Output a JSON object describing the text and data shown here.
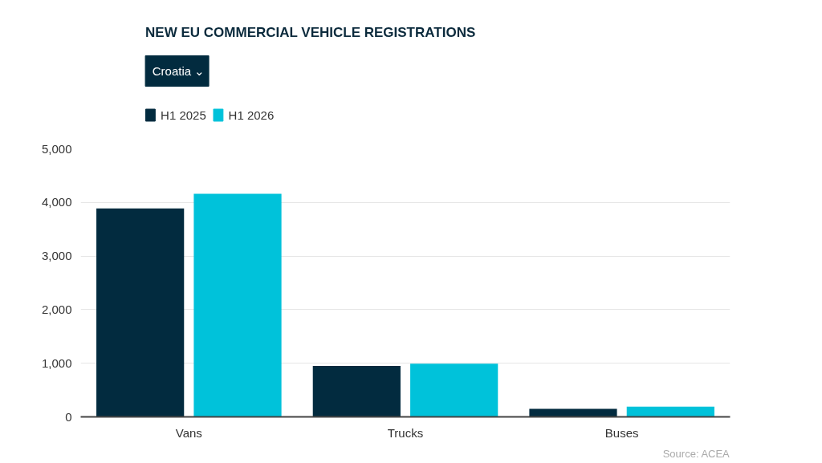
{
  "chart_data": {
    "type": "bar",
    "title": "NEW EU COMMERCIAL VEHICLE REGISTRATIONS",
    "subtitle": "Croatia ⌄",
    "categories": [
      "Vans",
      "Trucks",
      "Buses"
    ],
    "series": [
      {
        "name": "H1 2025",
        "color": "#022b3f",
        "values": [
          3890,
          950,
          150
        ]
      },
      {
        "name": "H1 2026",
        "color": "#00c2da",
        "values": [
          4160,
          990,
          190
        ]
      }
    ],
    "ylim": [
      0,
      5000
    ],
    "yticks": [
      {
        "value": 0,
        "label": "0"
      },
      {
        "value": 1000,
        "label": "1,000"
      },
      {
        "value": 2000,
        "label": "2,000"
      },
      {
        "value": 3000,
        "label": "3,000"
      },
      {
        "value": 4000,
        "label": "4,000"
      },
      {
        "value": 5000,
        "label": "5,000"
      }
    ],
    "grid": "y",
    "legend": "top left",
    "annotations": [
      "Source: ACEA"
    ]
  }
}
